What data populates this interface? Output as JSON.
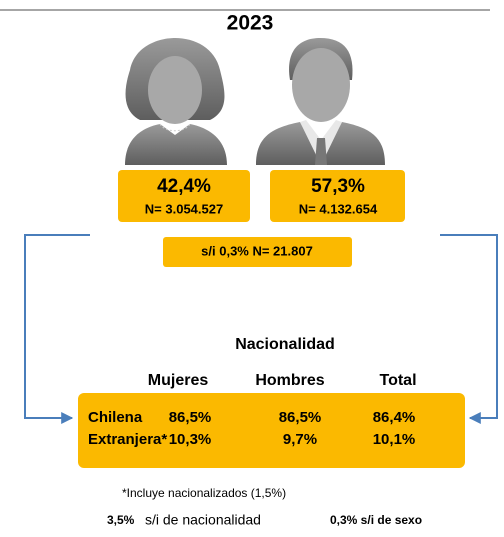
{
  "title": "2023",
  "women": {
    "percent": "42,4%",
    "n": "N= 3.054.527"
  },
  "men": {
    "percent": "57,3%",
    "n": "N= 4.132.654"
  },
  "unknown_sex": "s/i 0,3% N= 21.807",
  "nationality": {
    "title": "Nacionalidad",
    "columns": [
      "Mujeres",
      "Hombres",
      "Total"
    ],
    "rows": [
      {
        "label": "Chilena",
        "values": [
          "86,5%",
          "86,5%",
          "86,4%"
        ]
      },
      {
        "label": "Extranjera*",
        "values": [
          "10,3%",
          "9,7%",
          "10,1%"
        ]
      }
    ]
  },
  "footnote": "*Incluye nacionalizados (1,5%)",
  "bottom": {
    "nationality_pct": "3,5%",
    "nationality_text": "s/i de nacionalidad",
    "sex_note": "0,3% s/i de sexo"
  }
}
